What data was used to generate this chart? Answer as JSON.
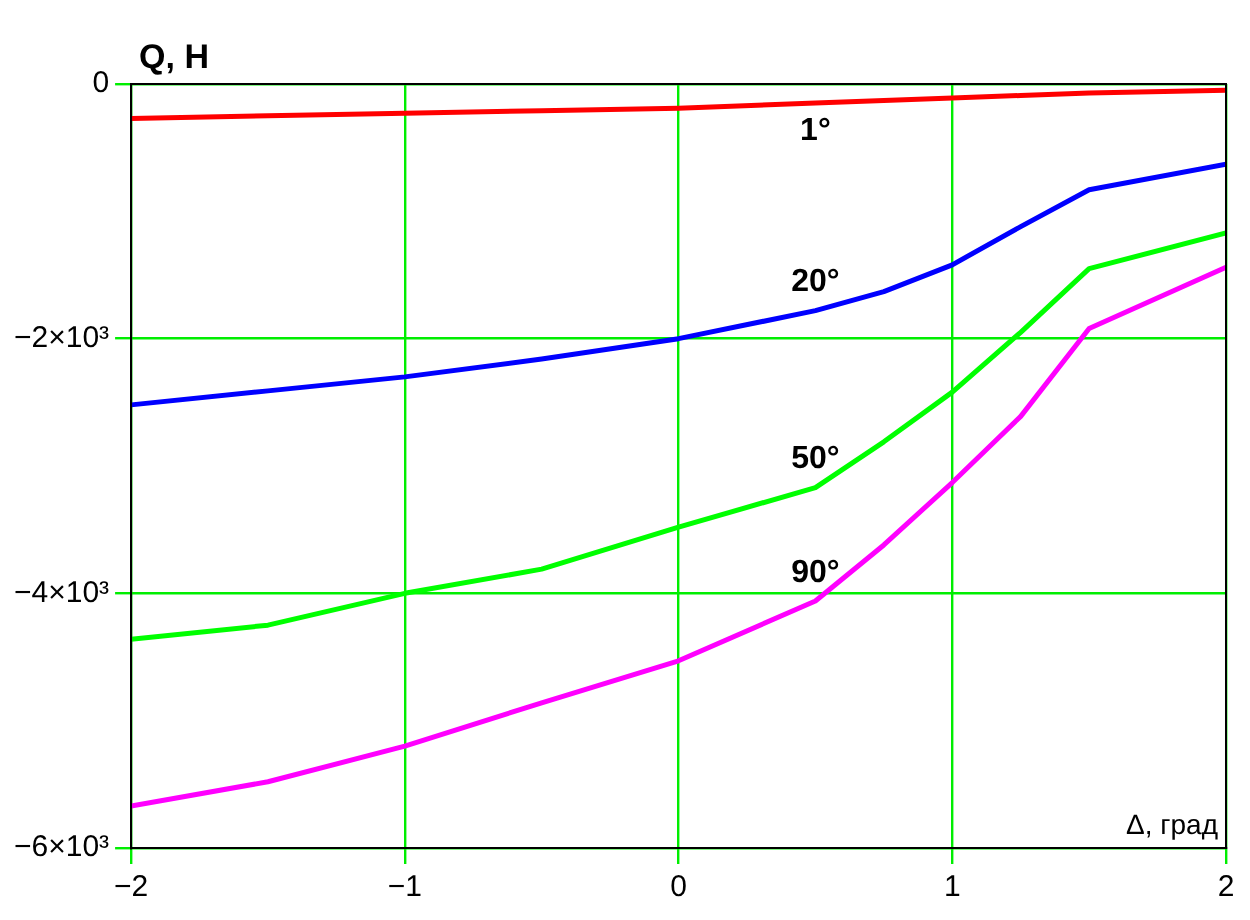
{
  "chart_data": {
    "type": "line",
    "xlabel": "Δ, град",
    "ylabel": "Q, H",
    "x": [
      -2,
      -1.5,
      -1,
      -0.5,
      0,
      0.5,
      0.75,
      1,
      1.25,
      1.5,
      2
    ],
    "series": [
      {
        "name": "1°",
        "color": "#ff0000",
        "values": [
          -270,
          -250,
          -230,
          -210,
          -190,
          -150,
          -130,
          -110,
          -90,
          -70,
          -50
        ]
      },
      {
        "name": "20°",
        "color": "#0000ff",
        "values": [
          -2520,
          -2410,
          -2300,
          -2160,
          -2000,
          -1780,
          -1630,
          -1420,
          -1120,
          -830,
          -630
        ]
      },
      {
        "name": "50°",
        "color": "#00ff00",
        "values": [
          -4360,
          -4250,
          -4000,
          -3810,
          -3480,
          -3170,
          -2810,
          -2420,
          -1950,
          -1450,
          -1170
        ]
      },
      {
        "name": "90°",
        "color": "#ff00ff",
        "values": [
          -5670,
          -5480,
          -5200,
          -4860,
          -4530,
          -4060,
          -3620,
          -3130,
          -2610,
          -1920,
          -1440
        ]
      }
    ],
    "xlim": [
      -2,
      2
    ],
    "xticks": [
      {
        "value": -2,
        "label": "−2"
      },
      {
        "value": -1,
        "label": "−1"
      },
      0,
      1,
      2
    ],
    "ylim": [
      -6000,
      0
    ],
    "yticks": [
      {
        "value": -6000,
        "label": "−6×10³"
      },
      {
        "value": -4000,
        "label": "−4×10³"
      },
      {
        "value": -2000,
        "label": "−2×10³"
      },
      0
    ],
    "grid": true,
    "legend": false,
    "marker": "none",
    "line_style": "solid"
  }
}
